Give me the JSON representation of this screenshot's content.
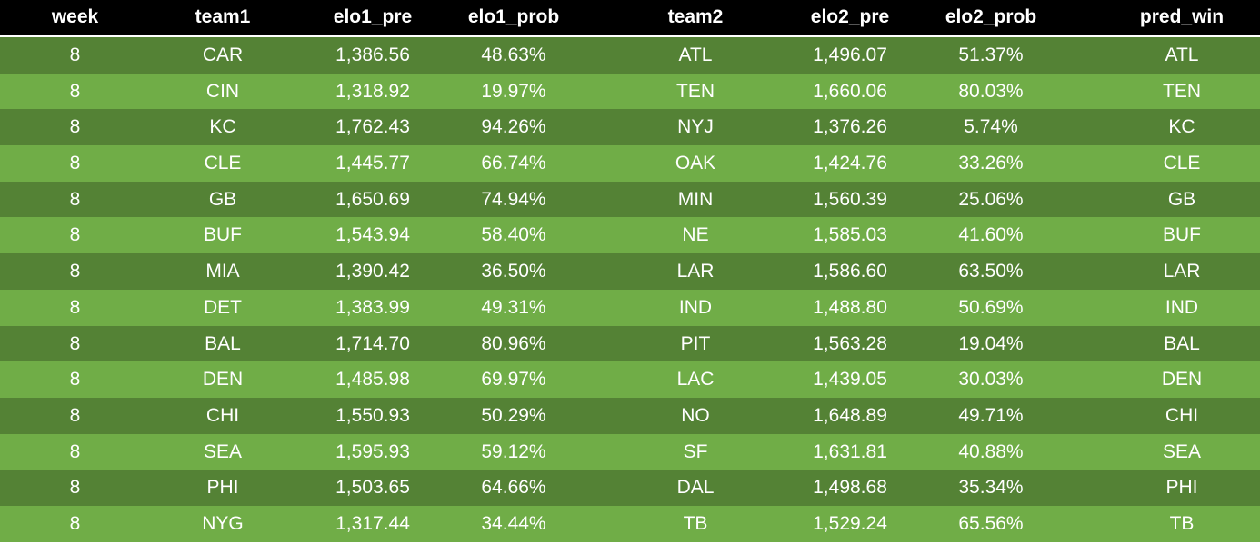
{
  "headers": [
    "week",
    "team1",
    "elo1_pre",
    "elo1_prob",
    "team2",
    "elo2_pre",
    "elo2_prob",
    "pred_win"
  ],
  "rows": [
    [
      "8",
      "CAR",
      "1,386.56",
      "48.63%",
      "ATL",
      "1,496.07",
      "51.37%",
      "ATL"
    ],
    [
      "8",
      "CIN",
      "1,318.92",
      "19.97%",
      "TEN",
      "1,660.06",
      "80.03%",
      "TEN"
    ],
    [
      "8",
      "KC",
      "1,762.43",
      "94.26%",
      "NYJ",
      "1,376.26",
      "5.74%",
      "KC"
    ],
    [
      "8",
      "CLE",
      "1,445.77",
      "66.74%",
      "OAK",
      "1,424.76",
      "33.26%",
      "CLE"
    ],
    [
      "8",
      "GB",
      "1,650.69",
      "74.94%",
      "MIN",
      "1,560.39",
      "25.06%",
      "GB"
    ],
    [
      "8",
      "BUF",
      "1,543.94",
      "58.40%",
      "NE",
      "1,585.03",
      "41.60%",
      "BUF"
    ],
    [
      "8",
      "MIA",
      "1,390.42",
      "36.50%",
      "LAR",
      "1,586.60",
      "63.50%",
      "LAR"
    ],
    [
      "8",
      "DET",
      "1,383.99",
      "49.31%",
      "IND",
      "1,488.80",
      "50.69%",
      "IND"
    ],
    [
      "8",
      "BAL",
      "1,714.70",
      "80.96%",
      "PIT",
      "1,563.28",
      "19.04%",
      "BAL"
    ],
    [
      "8",
      "DEN",
      "1,485.98",
      "69.97%",
      "LAC",
      "1,439.05",
      "30.03%",
      "DEN"
    ],
    [
      "8",
      "CHI",
      "1,550.93",
      "50.29%",
      "NO",
      "1,648.89",
      "49.71%",
      "CHI"
    ],
    [
      "8",
      "SEA",
      "1,595.93",
      "59.12%",
      "SF",
      "1,631.81",
      "40.88%",
      "SEA"
    ],
    [
      "8",
      "PHI",
      "1,503.65",
      "64.66%",
      "DAL",
      "1,498.68",
      "35.34%",
      "PHI"
    ],
    [
      "8",
      "NYG",
      "1,317.44",
      "34.44%",
      "TB",
      "1,529.24",
      "65.56%",
      "TB"
    ]
  ],
  "colors": {
    "header_bg": "#000000",
    "row_dark": "#548235",
    "row_light": "#70ad47",
    "text": "#ffffff"
  }
}
